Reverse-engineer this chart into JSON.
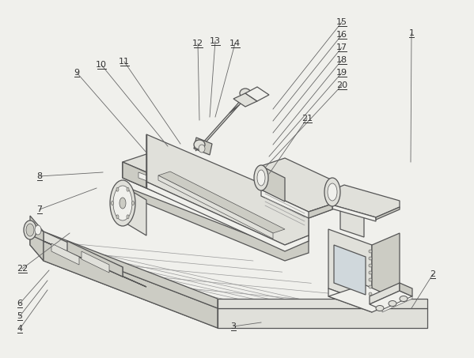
{
  "bg_color": "#f0f0ec",
  "line_color": "#555555",
  "line_color_light": "#999999",
  "fill_light": "#f0f0ec",
  "fill_mid": "#e0e0da",
  "fill_dark": "#ccccc4",
  "label_color": "#333333",
  "label_fs": 8,
  "lw_main": 0.9,
  "lw_thin": 0.5,
  "lw_label": 0.6,
  "labels_data": [
    [
      1,
      520,
      42,
      519,
      205
    ],
    [
      2,
      547,
      347,
      520,
      390
    ],
    [
      3,
      295,
      413,
      330,
      408
    ],
    [
      4,
      25,
      416,
      60,
      367
    ],
    [
      5,
      25,
      400,
      60,
      355
    ],
    [
      6,
      25,
      384,
      62,
      342
    ],
    [
      7,
      50,
      265,
      122,
      238
    ],
    [
      8,
      50,
      223,
      130,
      218
    ],
    [
      9,
      97,
      92,
      185,
      193
    ],
    [
      10,
      128,
      82,
      212,
      185
    ],
    [
      11,
      157,
      78,
      228,
      182
    ],
    [
      12,
      250,
      55,
      252,
      152
    ],
    [
      13,
      272,
      52,
      265,
      148
    ],
    [
      14,
      297,
      55,
      272,
      148
    ],
    [
      15,
      432,
      28,
      345,
      138
    ],
    [
      16,
      432,
      44,
      345,
      153
    ],
    [
      17,
      432,
      60,
      345,
      168
    ],
    [
      18,
      432,
      76,
      345,
      183
    ],
    [
      19,
      432,
      92,
      340,
      198
    ],
    [
      20,
      432,
      108,
      335,
      212
    ],
    [
      21,
      388,
      150,
      340,
      220
    ],
    [
      22,
      28,
      340,
      88,
      295
    ]
  ]
}
